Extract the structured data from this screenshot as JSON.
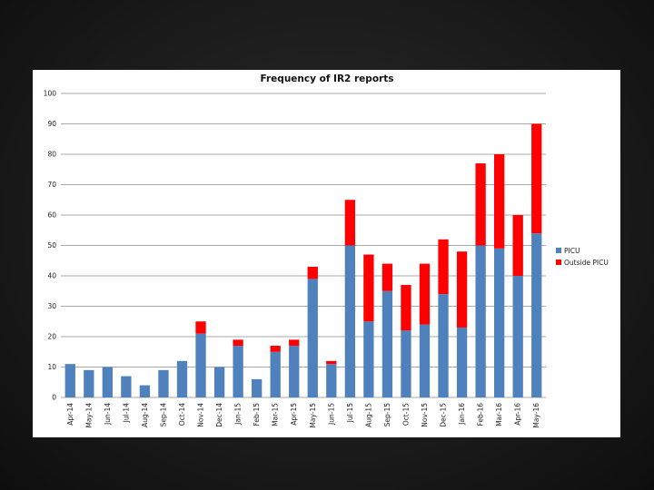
{
  "colors": {
    "picu": "#4f81bd",
    "outside": "#ff0000",
    "grid": "#8c8c8c"
  },
  "chart_data": {
    "type": "bar",
    "stacked": true,
    "title": "Frequency of IR2 reports",
    "xlabel": "",
    "ylabel": "",
    "ylim": [
      0,
      100
    ],
    "yticks": [
      0,
      10,
      20,
      30,
      40,
      50,
      60,
      70,
      80,
      90,
      100
    ],
    "grid": true,
    "legend_position": "right",
    "categories": [
      "Apr-14",
      "May-14",
      "Jun-14",
      "Jul-14",
      "Aug-14",
      "Sep-14",
      "Oct-14",
      "Nov-14",
      "Dec-14",
      "Jan-15",
      "Feb-15",
      "Mar-15",
      "Apr-15",
      "May-15",
      "Jun-15",
      "Jul-15",
      "Aug-15",
      "Sep-15",
      "Oct-15",
      "Nov-15",
      "Dec-15",
      "Jan-16",
      "Feb-16",
      "Mar-16",
      "Apr-16",
      "May-16"
    ],
    "series": [
      {
        "name": "PICU",
        "color": "#4f81bd",
        "values": [
          11,
          9,
          10,
          7,
          4,
          9,
          12,
          21,
          10,
          17,
          6,
          15,
          17,
          39,
          11,
          50,
          25,
          35,
          22,
          24,
          34,
          23,
          50,
          49,
          40,
          54
        ]
      },
      {
        "name": "Outside PICU",
        "color": "#ff0000",
        "values": [
          0,
          0,
          0,
          0,
          0,
          0,
          0,
          4,
          0,
          2,
          0,
          2,
          2,
          4,
          1,
          15,
          22,
          9,
          15,
          20,
          18,
          25,
          27,
          31,
          20,
          36
        ]
      }
    ]
  }
}
